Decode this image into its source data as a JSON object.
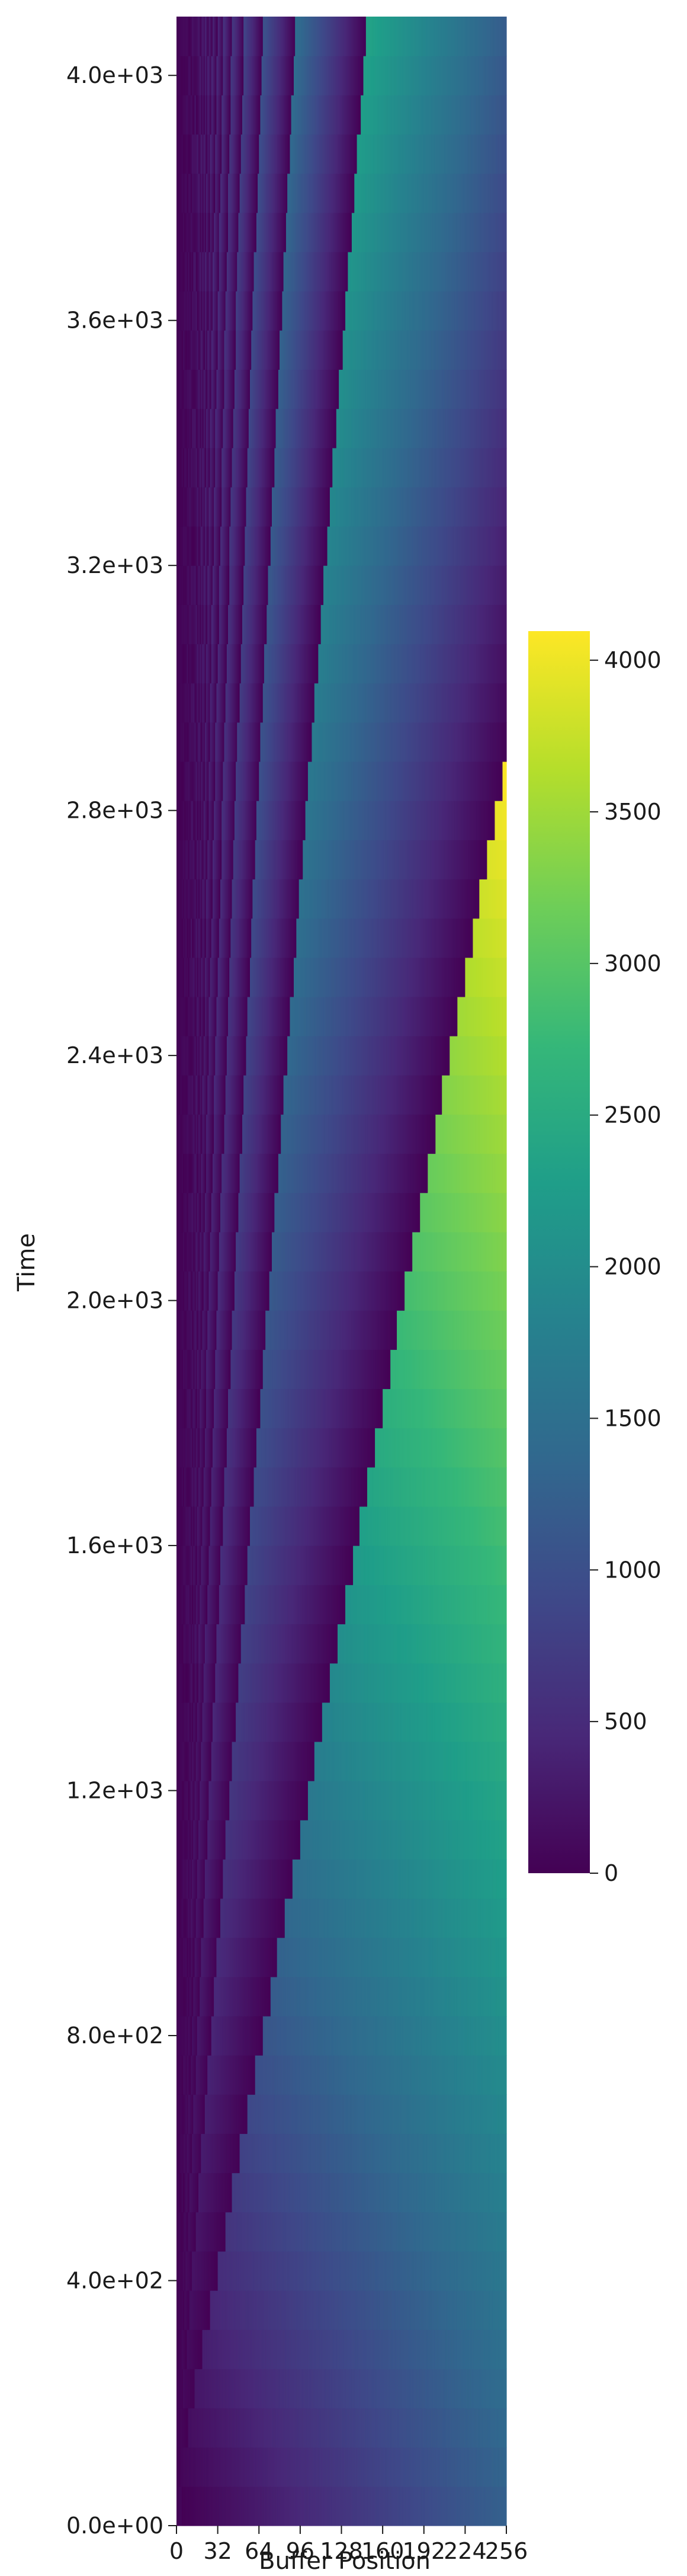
{
  "chart_data": {
    "type": "heatmap",
    "title": "",
    "xlabel": "Buffer Position",
    "ylabel": "Time",
    "x_ticks": [
      "0",
      "32",
      "64",
      "96",
      "128",
      "160",
      "192",
      "224",
      "256"
    ],
    "y_ticks": [
      "0.0e+00",
      "4.0e+02",
      "8.0e+02",
      "1.2e+03",
      "1.6e+03",
      "2.0e+03",
      "2.4e+03",
      "2.8e+03",
      "3.2e+03",
      "3.6e+03",
      "4.0e+03"
    ],
    "x_range": [
      0,
      256
    ],
    "y_range": [
      0,
      4096
    ],
    "colorbar": {
      "colormap": "viridis",
      "range": [
        0,
        4096
      ],
      "ticks": [
        "0",
        "500",
        "1000",
        "1500",
        "2000",
        "2500",
        "3000",
        "3500",
        "4000"
      ],
      "stops": [
        "#440154",
        "#482878",
        "#3e4989",
        "#31688e",
        "#26828e",
        "#1f9e89",
        "#35b779",
        "#6ece58",
        "#b5de2b",
        "#fde725"
      ]
    },
    "grid": false,
    "legend": "none",
    "description_of_pattern": "Cell value = time elapsed since that buffer position was last written; positions near 0 refresh frequently (dark stripes), positions near 256 refresh rarely (ramps up to ~4096)."
  }
}
